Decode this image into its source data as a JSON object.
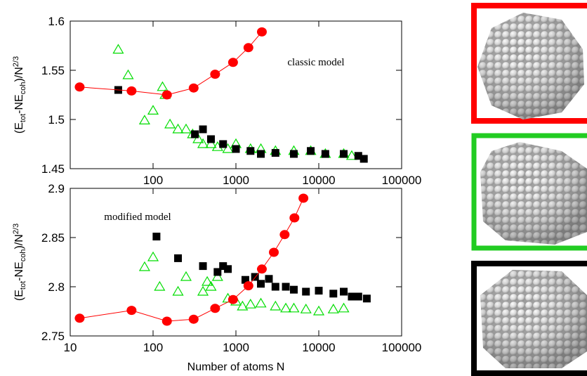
{
  "chart_data": [
    {
      "type": "scatter",
      "xlog": true,
      "xlim": [
        10,
        100000
      ],
      "xticks": [
        100,
        1000,
        10000,
        100000
      ],
      "ylim": [
        1.45,
        1.6
      ],
      "yticks": [
        1.45,
        1.5,
        1.55,
        1.6
      ],
      "ylabel": [
        "(E",
        "tot",
        "-NE",
        "coh",
        ")/N",
        "2/3"
      ],
      "annotation": "classic model",
      "series": [
        {
          "color": "#00dd00",
          "marker": "triangle",
          "line": false,
          "x": [
            38,
            50,
            79,
            100,
            130,
            140,
            160,
            200,
            250,
            300,
            350,
            400,
            500,
            600,
            800,
            1000,
            1500,
            2000,
            3000,
            5000,
            8000,
            12000,
            20000,
            25000
          ],
          "values": [
            1.571,
            1.545,
            1.499,
            1.509,
            1.533,
            1.525,
            1.495,
            1.49,
            1.49,
            1.485,
            1.48,
            1.475,
            1.475,
            1.472,
            1.47,
            1.475,
            1.47,
            1.47,
            1.468,
            1.468,
            1.468,
            1.465,
            1.465,
            1.463
          ]
        },
        {
          "color": "#000000",
          "marker": "square",
          "line": false,
          "x": [
            38,
            320,
            400,
            500,
            700,
            1000,
            1500,
            2000,
            3000,
            5000,
            8000,
            12000,
            20000,
            30000,
            35000
          ],
          "values": [
            1.53,
            1.485,
            1.49,
            1.48,
            1.475,
            1.47,
            1.468,
            1.465,
            1.466,
            1.465,
            1.468,
            1.465,
            1.465,
            1.463,
            1.46
          ]
        },
        {
          "color": "#ff0000",
          "marker": "circle",
          "line": true,
          "x": [
            13,
            55,
            147,
            309,
            561,
            923,
            1415,
            2057
          ],
          "values": [
            1.533,
            1.529,
            1.525,
            1.532,
            1.546,
            1.558,
            1.573,
            1.589
          ]
        }
      ]
    },
    {
      "type": "scatter",
      "xlog": true,
      "xlim": [
        10,
        100000
      ],
      "xticks": [
        10,
        100,
        1000,
        10000,
        100000
      ],
      "ylim": [
        2.75,
        2.9
      ],
      "yticks": [
        2.75,
        2.8,
        2.85,
        2.9
      ],
      "xlabel": "Number of atoms N",
      "ylabel": [
        "(E",
        "tot",
        "-NE",
        "coh",
        ")/N",
        "2/3"
      ],
      "annotation": "modified model",
      "series": [
        {
          "color": "#00dd00",
          "marker": "triangle",
          "line": false,
          "x": [
            79,
            100,
            120,
            200,
            250,
            400,
            450,
            500,
            600,
            800,
            1000,
            1200,
            1500,
            2000,
            3000,
            4000,
            5000,
            7000,
            10000,
            15000,
            20000
          ],
          "values": [
            2.82,
            2.83,
            2.8,
            2.795,
            2.81,
            2.795,
            2.805,
            2.8,
            2.81,
            2.788,
            2.785,
            2.78,
            2.782,
            2.783,
            2.78,
            2.778,
            2.778,
            2.777,
            2.775,
            2.777,
            2.778
          ]
        },
        {
          "color": "#000000",
          "marker": "square",
          "line": false,
          "x": [
            110,
            200,
            400,
            600,
            700,
            800,
            1300,
            1700,
            2000,
            2500,
            3000,
            4000,
            5000,
            7000,
            10000,
            15000,
            20000,
            25000,
            30000,
            38000
          ],
          "values": [
            2.851,
            2.829,
            2.821,
            2.815,
            2.821,
            2.818,
            2.807,
            2.81,
            2.803,
            2.808,
            2.8,
            2.8,
            2.797,
            2.795,
            2.796,
            2.793,
            2.795,
            2.79,
            2.79,
            2.788
          ]
        },
        {
          "color": "#ff0000",
          "marker": "circle",
          "line": true,
          "x": [
            13,
            55,
            147,
            309,
            561,
            923,
            1415,
            2057,
            2869,
            3871,
            5083,
            6525
          ],
          "values": [
            2.768,
            2.776,
            2.765,
            2.767,
            2.778,
            2.787,
            2.801,
            2.818,
            2.835,
            2.853,
            2.87,
            2.89
          ]
        }
      ]
    }
  ]
}
